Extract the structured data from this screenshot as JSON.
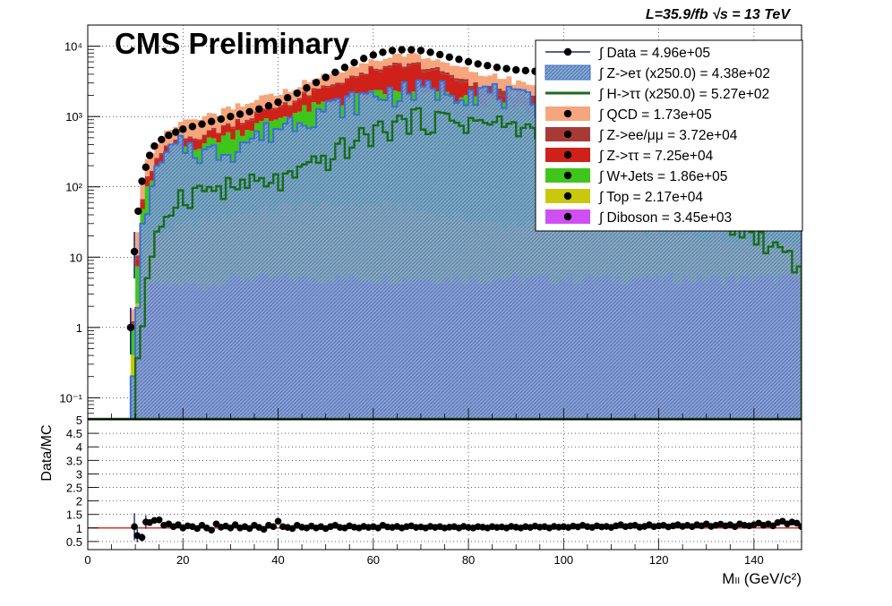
{
  "header": {
    "label": "CMS Preliminary",
    "lumi": "L=35.9/fb  √s = 13 TeV"
  },
  "colors": {
    "data": "#000000",
    "ztau_e": "#6f96c8",
    "htt": "#1a6b1a",
    "qcd": "#f6a57c",
    "zll": "#a83a36",
    "ztautau": "#d0201a",
    "wjets": "#3fc61a",
    "top": "#c9c80c",
    "diboson": "#cf4ff2",
    "fit_line": "#d22020"
  },
  "legend": [
    {
      "key": "data",
      "label": "∫ Data = 4.96e+05"
    },
    {
      "key": "ztau_e",
      "label": "∫ Z->eτ (x250.0) = 4.38e+02"
    },
    {
      "key": "htt",
      "label": "∫ H->ττ (x250.0) = 5.27e+02"
    },
    {
      "key": "qcd",
      "label": "∫ QCD = 1.73e+05"
    },
    {
      "key": "zll",
      "label": "∫ Z->ee/μμ = 3.72e+04"
    },
    {
      "key": "ztautau",
      "label": "∫ Z->ττ = 7.25e+04"
    },
    {
      "key": "wjets",
      "label": "∫ W+Jets = 1.86e+05"
    },
    {
      "key": "top",
      "label": "∫ Top = 2.17e+04"
    },
    {
      "key": "diboson",
      "label": "∫ Diboson = 3.45e+03"
    }
  ],
  "chart_data": [
    {
      "type": "bar",
      "stacked": true,
      "log_y": true,
      "xlim": [
        0,
        150
      ],
      "ylim": [
        0.05,
        20000
      ],
      "x_ticks": [
        0,
        20,
        40,
        60,
        80,
        100,
        120,
        140
      ],
      "y_ticks": [
        {
          "v": 0.1,
          "label": "10⁻¹"
        },
        {
          "v": 1,
          "label": "1"
        },
        {
          "v": 10,
          "label": "10"
        },
        {
          "v": 100,
          "label": "10²"
        },
        {
          "v": 1000,
          "label": "10³"
        },
        {
          "v": 10000,
          "label": "10⁴"
        }
      ],
      "grid": true,
      "legend_position": "top-right",
      "x_nodes": [
        9,
        10,
        11,
        12,
        14,
        17,
        20,
        25,
        30,
        35,
        40,
        45,
        50,
        55,
        60,
        65,
        68,
        70,
        75,
        80,
        85,
        90,
        100,
        110,
        120,
        130,
        140,
        150
      ],
      "stack_order": [
        "diboson",
        "top",
        "wjets",
        "ztautau",
        "zll",
        "qcd"
      ],
      "stack_nodes": {
        "diboson": [
          0,
          0.3,
          1,
          2,
          4,
          4,
          4,
          4,
          5,
          5,
          5,
          5,
          5,
          5,
          5,
          5,
          5,
          5,
          5,
          5,
          5,
          5,
          5,
          5,
          5,
          5,
          5,
          5
        ],
        "top": [
          0,
          0.5,
          3,
          8,
          15,
          20,
          25,
          30,
          35,
          40,
          45,
          50,
          50,
          50,
          50,
          50,
          45,
          40,
          35,
          30,
          25,
          25,
          20,
          18,
          16,
          14,
          12,
          10
        ],
        "wjets": [
          0,
          1,
          10,
          60,
          140,
          250,
          330,
          400,
          520,
          680,
          900,
          1150,
          1450,
          1700,
          2000,
          2050,
          2050,
          2000,
          1900,
          1700,
          1550,
          1350,
          1000,
          700,
          500,
          330,
          220,
          150
        ],
        "ztautau": [
          0,
          0.5,
          4,
          20,
          50,
          80,
          100,
          120,
          180,
          280,
          400,
          650,
          1000,
          1500,
          2200,
          2800,
          3000,
          2800,
          1800,
          1000,
          500,
          250,
          80,
          35,
          15,
          8,
          4,
          2
        ],
        "zll": [
          0,
          0.2,
          2,
          8,
          15,
          20,
          25,
          30,
          40,
          55,
          80,
          120,
          170,
          230,
          300,
          360,
          380,
          380,
          380,
          380,
          400,
          450,
          700,
          900,
          800,
          500,
          300,
          200
        ],
        "qcd": [
          0,
          1,
          20,
          70,
          150,
          250,
          350,
          420,
          500,
          600,
          700,
          900,
          1100,
          1300,
          1600,
          1800,
          1800,
          1800,
          1600,
          1400,
          1200,
          1000,
          700,
          500,
          350,
          250,
          180,
          120
        ]
      },
      "signal_nodes": {
        "ztau_e": [
          0,
          0.3,
          5,
          40,
          120,
          300,
          400,
          300,
          350,
          500,
          700,
          1000,
          1300,
          1600,
          2000,
          2200,
          2300,
          2400,
          2500,
          2400,
          2200,
          1800,
          1200,
          800,
          500,
          300,
          200,
          120
        ],
        "htt": [
          0,
          0.1,
          0.5,
          2,
          10,
          50,
          80,
          90,
          100,
          110,
          120,
          150,
          250,
          400,
          600,
          800,
          900,
          950,
          900,
          850,
          800,
          700,
          500,
          250,
          120,
          50,
          20,
          8
        ]
      },
      "data_points": [
        {
          "x": 9.0,
          "y": 1
        },
        {
          "x": 9.8,
          "y": 12
        },
        {
          "x": 10.6,
          "y": 45
        },
        {
          "x": 11.4,
          "y": 120
        },
        {
          "x": 12.2,
          "y": 190
        },
        {
          "x": 13.0,
          "y": 280
        },
        {
          "x": 14.0,
          "y": 380
        },
        {
          "x": 15.5,
          "y": 470
        },
        {
          "x": 17.0,
          "y": 540
        },
        {
          "x": 18.5,
          "y": 600
        },
        {
          "x": 20.0,
          "y": 660
        },
        {
          "x": 22.0,
          "y": 720
        },
        {
          "x": 24.0,
          "y": 780
        },
        {
          "x": 26.0,
          "y": 850
        },
        {
          "x": 28.0,
          "y": 920
        },
        {
          "x": 30.0,
          "y": 1000
        },
        {
          "x": 32.0,
          "y": 1080
        },
        {
          "x": 34.0,
          "y": 1170
        },
        {
          "x": 36.0,
          "y": 1280
        },
        {
          "x": 38.0,
          "y": 1420
        },
        {
          "x": 40.0,
          "y": 1600
        },
        {
          "x": 42.0,
          "y": 1850
        },
        {
          "x": 44.0,
          "y": 2150
        },
        {
          "x": 46.0,
          "y": 2550
        },
        {
          "x": 48.0,
          "y": 3050
        },
        {
          "x": 50.0,
          "y": 3600
        },
        {
          "x": 52.0,
          "y": 4250
        },
        {
          "x": 54.0,
          "y": 5000
        },
        {
          "x": 56.0,
          "y": 5850
        },
        {
          "x": 58.0,
          "y": 6700
        },
        {
          "x": 60.0,
          "y": 7500
        },
        {
          "x": 62.0,
          "y": 8200
        },
        {
          "x": 64.0,
          "y": 8700
        },
        {
          "x": 66.0,
          "y": 8900
        },
        {
          "x": 68.0,
          "y": 8900
        },
        {
          "x": 70.0,
          "y": 8700
        },
        {
          "x": 72.0,
          "y": 8200
        },
        {
          "x": 74.0,
          "y": 7600
        },
        {
          "x": 76.0,
          "y": 7000
        },
        {
          "x": 78.0,
          "y": 6500
        },
        {
          "x": 80.0,
          "y": 6000
        },
        {
          "x": 82.0,
          "y": 5600
        },
        {
          "x": 84.0,
          "y": 5300
        },
        {
          "x": 86.0,
          "y": 5000
        },
        {
          "x": 88.0,
          "y": 4800
        },
        {
          "x": 90.0,
          "y": 4600
        },
        {
          "x": 92.0,
          "y": 4500
        },
        {
          "x": 94.0,
          "y": 4400
        },
        {
          "x": 96.0,
          "y": 4300
        },
        {
          "x": 98.0,
          "y": 4200
        },
        {
          "x": 100.0,
          "y": 4050
        },
        {
          "x": 150.0,
          "y": 900
        }
      ]
    },
    {
      "type": "scatter",
      "ylabel": "Data/MC",
      "xlabel": "Mₗₗ (GeV/c²)",
      "xlim": [
        0,
        150
      ],
      "ylim": [
        0.2,
        5
      ],
      "x_ticks": [
        0,
        20,
        40,
        60,
        80,
        100,
        120,
        140
      ],
      "y_ticks": [
        0.5,
        1,
        1.5,
        2,
        2.5,
        3,
        3.5,
        4,
        4.5,
        5
      ],
      "grid": true,
      "reference_line": 1,
      "points": [
        {
          "x": 9.8,
          "y": 1.05,
          "err": 0.5
        },
        {
          "x": 10.4,
          "y": 0.72,
          "err": 0.25
        },
        {
          "x": 11.4,
          "y": 0.65,
          "err": 0.15
        },
        {
          "x": 12.2,
          "y": 1.22,
          "err": 0.25
        },
        {
          "x": 13.0,
          "y": 1.2,
          "err": 0.1
        },
        {
          "x": 14.0,
          "y": 1.28,
          "err": 0.08
        },
        {
          "x": 15.0,
          "y": 1.3,
          "err": 0.07
        },
        {
          "x": 16.0,
          "y": 1.1,
          "err": 0.06
        },
        {
          "x": 17.0,
          "y": 1.15
        },
        {
          "x": 18.0,
          "y": 1.05
        },
        {
          "x": 19.0,
          "y": 1.12
        },
        {
          "x": 20.0,
          "y": 1.0
        },
        {
          "x": 21.0,
          "y": 1.08
        },
        {
          "x": 22.0,
          "y": 1.05
        },
        {
          "x": 23.0,
          "y": 0.98
        },
        {
          "x": 24.0,
          "y": 1.1
        },
        {
          "x": 25.0,
          "y": 1.0
        },
        {
          "x": 26.0,
          "y": 0.92
        },
        {
          "x": 27.0,
          "y": 1.15
        },
        {
          "x": 28.0,
          "y": 1.03
        },
        {
          "x": 29.0,
          "y": 1.07
        },
        {
          "x": 30.0,
          "y": 1.0
        },
        {
          "x": 31.0,
          "y": 1.12
        },
        {
          "x": 32.0,
          "y": 1.0
        },
        {
          "x": 33.0,
          "y": 1.05
        },
        {
          "x": 34.0,
          "y": 0.98
        },
        {
          "x": 35.0,
          "y": 1.1
        },
        {
          "x": 36.0,
          "y": 1.02
        },
        {
          "x": 37.0,
          "y": 0.95
        },
        {
          "x": 38.0,
          "y": 1.1
        },
        {
          "x": 39.0,
          "y": 1.05
        },
        {
          "x": 40.0,
          "y": 1.25
        },
        {
          "x": 41.0,
          "y": 1.05
        },
        {
          "x": 42.0,
          "y": 1.02
        },
        {
          "x": 43.0,
          "y": 0.98
        },
        {
          "x": 44.0,
          "y": 1.1
        },
        {
          "x": 45.0,
          "y": 1.03
        },
        {
          "x": 46.0,
          "y": 1.0
        },
        {
          "x": 47.0,
          "y": 1.07
        },
        {
          "x": 48.0,
          "y": 1.0
        },
        {
          "x": 49.0,
          "y": 1.05
        },
        {
          "x": 50.0,
          "y": 0.98
        },
        {
          "x": 51.0,
          "y": 1.05
        },
        {
          "x": 52.0,
          "y": 1.1
        },
        {
          "x": 53.0,
          "y": 1.02
        },
        {
          "x": 54.0,
          "y": 1.0
        },
        {
          "x": 55.0,
          "y": 1.08
        },
        {
          "x": 56.0,
          "y": 1.03
        },
        {
          "x": 57.0,
          "y": 1.0
        },
        {
          "x": 58.0,
          "y": 1.06
        },
        {
          "x": 59.0,
          "y": 1.02
        },
        {
          "x": 60.0,
          "y": 1.05
        },
        {
          "x": 61.0,
          "y": 1.0
        },
        {
          "x": 62.0,
          "y": 1.1
        },
        {
          "x": 63.0,
          "y": 1.04
        },
        {
          "x": 64.0,
          "y": 1.02
        },
        {
          "x": 65.0,
          "y": 1.06
        },
        {
          "x": 66.0,
          "y": 1.0
        },
        {
          "x": 67.0,
          "y": 1.05
        },
        {
          "x": 68.0,
          "y": 1.08
        },
        {
          "x": 69.0,
          "y": 1.02
        },
        {
          "x": 70.0,
          "y": 1.04
        },
        {
          "x": 71.0,
          "y": 1.0
        },
        {
          "x": 72.0,
          "y": 1.06
        },
        {
          "x": 73.0,
          "y": 1.02
        },
        {
          "x": 74.0,
          "y": 1.05
        },
        {
          "x": 75.0,
          "y": 1.0
        },
        {
          "x": 76.0,
          "y": 1.03
        },
        {
          "x": 77.0,
          "y": 1.05
        },
        {
          "x": 78.0,
          "y": 1.0
        },
        {
          "x": 79.0,
          "y": 1.06
        },
        {
          "x": 80.0,
          "y": 1.02
        },
        {
          "x": 81.0,
          "y": 1.0
        },
        {
          "x": 82.0,
          "y": 1.05
        },
        {
          "x": 83.0,
          "y": 1.03
        },
        {
          "x": 84.0,
          "y": 1.0
        },
        {
          "x": 85.0,
          "y": 1.05
        },
        {
          "x": 86.0,
          "y": 1.02
        },
        {
          "x": 87.0,
          "y": 1.04
        },
        {
          "x": 88.0,
          "y": 1.0
        },
        {
          "x": 89.0,
          "y": 1.06
        },
        {
          "x": 90.0,
          "y": 1.03
        },
        {
          "x": 91.0,
          "y": 1.0
        },
        {
          "x": 92.0,
          "y": 1.05
        },
        {
          "x": 93.0,
          "y": 1.02
        },
        {
          "x": 94.0,
          "y": 1.07
        },
        {
          "x": 95.0,
          "y": 1.03
        },
        {
          "x": 96.0,
          "y": 1.05
        },
        {
          "x": 97.0,
          "y": 1.0
        },
        {
          "x": 98.0,
          "y": 1.06
        },
        {
          "x": 99.0,
          "y": 1.03
        },
        {
          "x": 100.0,
          "y": 1.05
        },
        {
          "x": 101.0,
          "y": 1.02
        },
        {
          "x": 102.0,
          "y": 1.07
        },
        {
          "x": 103.0,
          "y": 1.04
        },
        {
          "x": 104.0,
          "y": 1.1
        },
        {
          "x": 105.0,
          "y": 1.05
        },
        {
          "x": 106.0,
          "y": 1.02
        },
        {
          "x": 107.0,
          "y": 1.08
        },
        {
          "x": 108.0,
          "y": 1.04
        },
        {
          "x": 109.0,
          "y": 1.06
        },
        {
          "x": 110.0,
          "y": 1.02
        },
        {
          "x": 111.0,
          "y": 1.08
        },
        {
          "x": 112.0,
          "y": 1.12
        },
        {
          "x": 113.0,
          "y": 1.05
        },
        {
          "x": 114.0,
          "y": 1.08
        },
        {
          "x": 115.0,
          "y": 1.1
        },
        {
          "x": 116.0,
          "y": 1.03
        },
        {
          "x": 117.0,
          "y": 1.06
        },
        {
          "x": 118.0,
          "y": 1.12
        },
        {
          "x": 119.0,
          "y": 1.05
        },
        {
          "x": 120.0,
          "y": 1.08
        },
        {
          "x": 121.0,
          "y": 1.1
        },
        {
          "x": 122.0,
          "y": 1.04
        },
        {
          "x": 123.0,
          "y": 1.08
        },
        {
          "x": 124.0,
          "y": 1.12
        },
        {
          "x": 125.0,
          "y": 1.06
        },
        {
          "x": 126.0,
          "y": 1.1
        },
        {
          "x": 127.0,
          "y": 1.05
        },
        {
          "x": 128.0,
          "y": 1.12
        },
        {
          "x": 129.0,
          "y": 1.08
        },
        {
          "x": 130.0,
          "y": 1.15
        },
        {
          "x": 131.0,
          "y": 1.06
        },
        {
          "x": 132.0,
          "y": 1.1
        },
        {
          "x": 133.0,
          "y": 1.14
        },
        {
          "x": 134.0,
          "y": 1.08
        },
        {
          "x": 135.0,
          "y": 1.12
        },
        {
          "x": 136.0,
          "y": 1.05
        },
        {
          "x": 137.0,
          "y": 1.15
        },
        {
          "x": 138.0,
          "y": 1.1
        },
        {
          "x": 139.0,
          "y": 1.08
        },
        {
          "x": 140.0,
          "y": 1.12
        },
        {
          "x": 141.0,
          "y": 1.18
        },
        {
          "x": 142.0,
          "y": 1.1
        },
        {
          "x": 143.0,
          "y": 1.15
        },
        {
          "x": 144.0,
          "y": 1.08
        },
        {
          "x": 145.0,
          "y": 1.2
        },
        {
          "x": 146.0,
          "y": 1.25
        },
        {
          "x": 147.0,
          "y": 1.15
        },
        {
          "x": 148.0,
          "y": 1.22
        },
        {
          "x": 149.0,
          "y": 1.18
        },
        {
          "x": 150.0,
          "y": 1.05
        }
      ]
    }
  ]
}
